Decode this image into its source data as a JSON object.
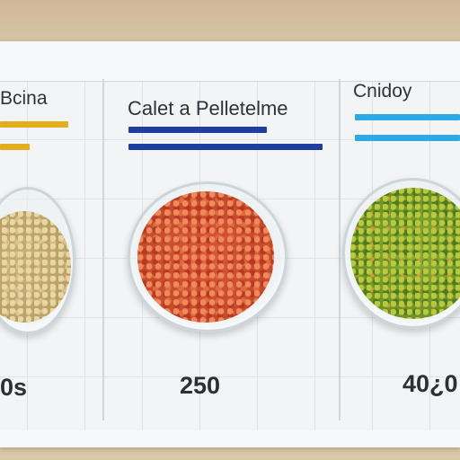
{
  "columns": [
    {
      "title": "Bcina",
      "value": "0s",
      "bar_colors": [
        "#e8b020",
        "#e8b020"
      ],
      "food": "grain"
    },
    {
      "title": "Calet a Pelletelme",
      "value": "250",
      "bar_colors": [
        "#1f3fa0",
        "#1f3fa0"
      ],
      "food": "tomato"
    },
    {
      "title": "Cnidoy",
      "value": "40¿0",
      "bar_colors": [
        "#2aa8e0",
        "#2aa8e0"
      ],
      "food": "herb"
    }
  ]
}
